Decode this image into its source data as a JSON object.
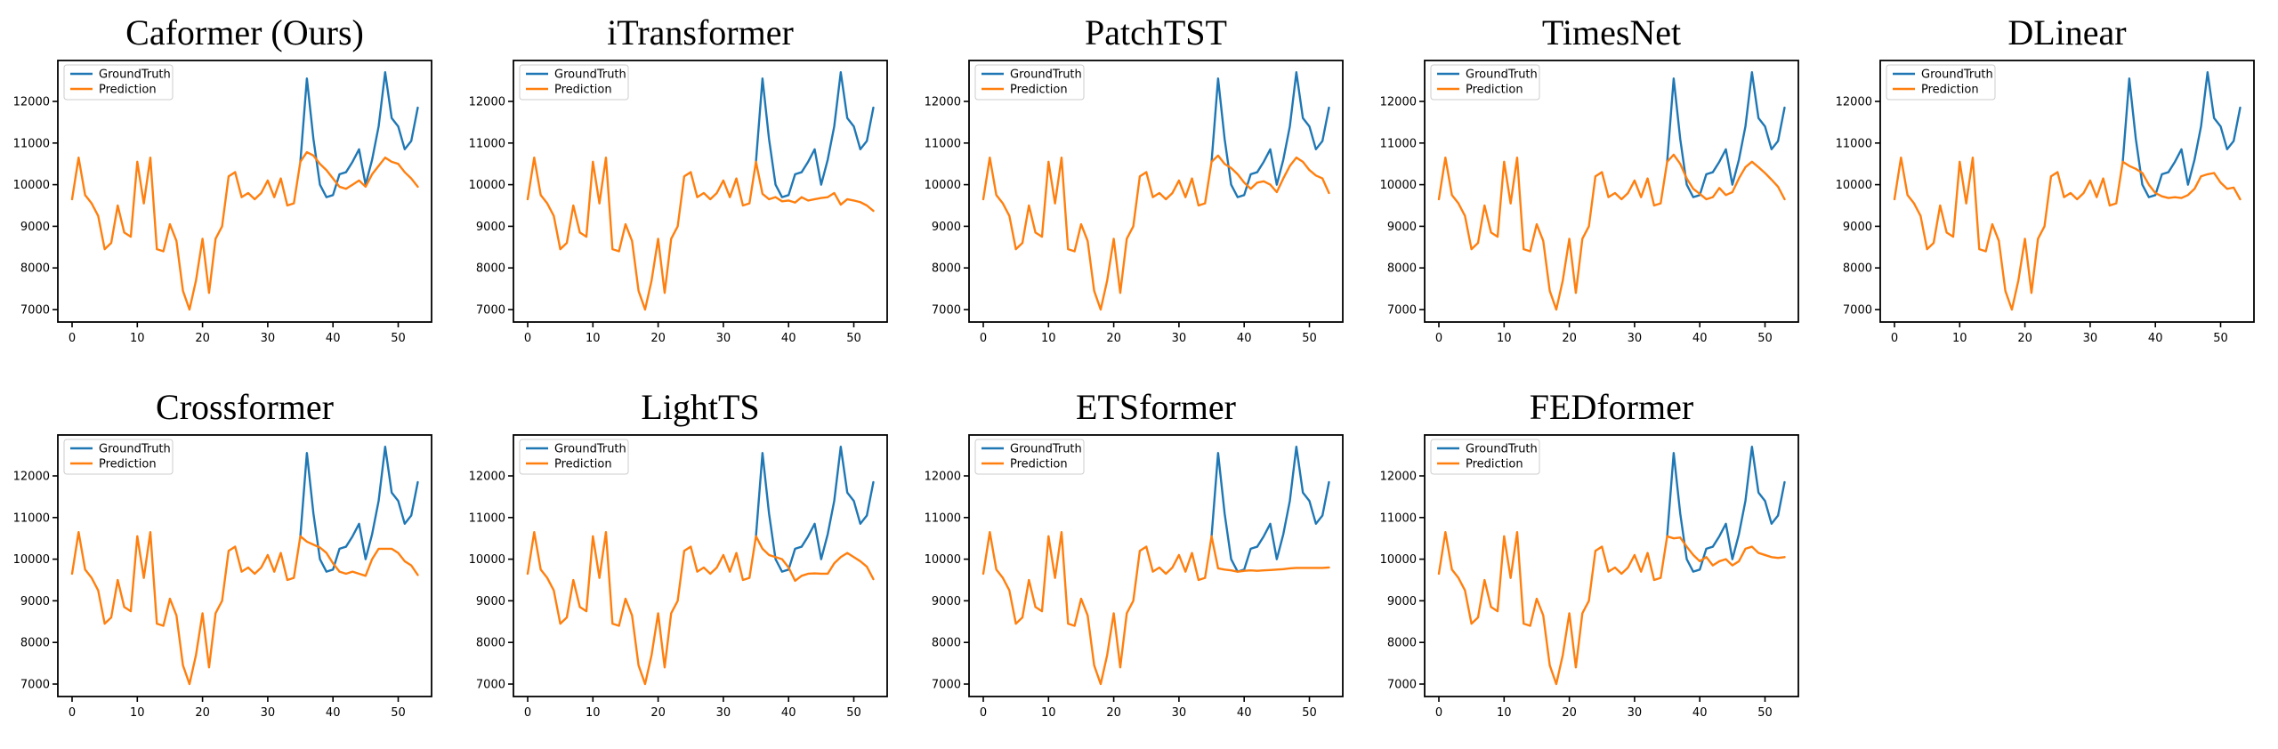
{
  "figure": {
    "background": "#ffffff",
    "rows": 2,
    "row1_titles": [
      "Caformer (Ours)",
      "iTransformer",
      "PatchTST",
      "TimesNet",
      "DLinear"
    ],
    "row2_titles": [
      "Crossformer",
      "LightTS",
      "ETSformer",
      "FEDformer"
    ]
  },
  "chart_data": {
    "type": "line",
    "legend": {
      "position": "upper-left",
      "entries": [
        "GroundTruth",
        "Prediction"
      ]
    },
    "colors": {
      "groundtruth": "#1f77b4",
      "prediction": "#ff7f0e"
    },
    "x_ticks": [
      0,
      10,
      20,
      30,
      40,
      50
    ],
    "y_ticks": [
      7000,
      8000,
      9000,
      10000,
      11000,
      12000
    ],
    "xlim": [
      -2.2,
      55.1
    ],
    "ylim": [
      6700,
      12980
    ],
    "grid": false,
    "x_history": "integers 0..35",
    "history_values": [
      9650,
      10650,
      9750,
      9550,
      9250,
      8450,
      8600,
      9500,
      8850,
      8750,
      10550,
      9550,
      10650,
      8450,
      8400,
      9050,
      8650,
      7450,
      7000,
      7700,
      8700,
      7400,
      8700,
      9000,
      10200,
      10300,
      9700,
      9800,
      9650,
      9800,
      10100,
      9700,
      10150,
      9500,
      9550,
      10550
    ],
    "x_future": "integers 35..53",
    "groundtruth_future": [
      10550,
      12550,
      11100,
      10000,
      9700,
      9750,
      10250,
      10300,
      10550,
      10850,
      10000,
      10600,
      11400,
      12700,
      11600,
      11400,
      10850,
      11050,
      11850
    ],
    "charts": [
      {
        "title": "Caformer (Ours)",
        "prediction_future": [
          10780,
          10700,
          10500,
          10350,
          10150,
          9950,
          9900,
          10000,
          10100,
          9950,
          10250,
          10450,
          10650,
          10550,
          10500,
          10300,
          10150,
          9950
        ]
      },
      {
        "title": "iTransformer",
        "prediction_future": [
          9780,
          9650,
          9700,
          9600,
          9620,
          9570,
          9700,
          9620,
          9650,
          9680,
          9700,
          9800,
          9520,
          9650,
          9620,
          9580,
          9500,
          9370
        ]
      },
      {
        "title": "PatchTST",
        "prediction_future": [
          10700,
          10500,
          10400,
          10250,
          10050,
          9900,
          10050,
          10080,
          10000,
          9820,
          10150,
          10450,
          10650,
          10550,
          10350,
          10220,
          10150,
          9800
        ]
      },
      {
        "title": "TimesNet",
        "prediction_future": [
          10720,
          10500,
          10150,
          9900,
          9780,
          9650,
          9700,
          9920,
          9750,
          9820,
          10150,
          10420,
          10550,
          10420,
          10280,
          10120,
          9950,
          9650
        ]
      },
      {
        "title": "DLinear",
        "prediction_future": [
          10450,
          10380,
          10280,
          10000,
          9800,
          9720,
          9680,
          9700,
          9680,
          9750,
          9900,
          10200,
          10250,
          10280,
          10050,
          9900,
          9930,
          9650
        ]
      },
      {
        "title": "Crossformer",
        "prediction_future": [
          10420,
          10350,
          10280,
          10150,
          9900,
          9700,
          9650,
          9700,
          9650,
          9600,
          10000,
          10250,
          10250,
          10250,
          10150,
          9950,
          9850,
          9620
        ]
      },
      {
        "title": "LightTS",
        "prediction_future": [
          10250,
          10100,
          10050,
          10000,
          9800,
          9480,
          9600,
          9650,
          9660,
          9650,
          9650,
          9900,
          10050,
          10150,
          10050,
          9950,
          9820,
          9520
        ]
      },
      {
        "title": "ETSformer",
        "prediction_future": [
          9780,
          9750,
          9730,
          9700,
          9720,
          9730,
          9720,
          9730,
          9740,
          9750,
          9760,
          9780,
          9790,
          9790,
          9790,
          9790,
          9790,
          9800
        ]
      },
      {
        "title": "FEDformer",
        "prediction_future": [
          10500,
          10520,
          10300,
          10100,
          9950,
          10050,
          9850,
          9950,
          10000,
          9850,
          9950,
          10250,
          10300,
          10150,
          10100,
          10050,
          10030,
          10050
        ]
      }
    ]
  }
}
